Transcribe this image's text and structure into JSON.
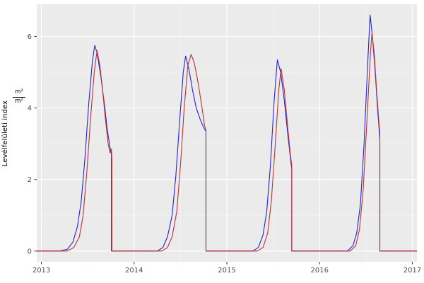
{
  "chart_data": {
    "type": "line",
    "title": "",
    "xlabel": "",
    "ylabel": "Levélfelületi index (m²/m²)",
    "ylabel_text": "Levélfelületi index",
    "ylabel_frac": {
      "num": "m²",
      "den": "m²"
    },
    "xlim": [
      2012.95,
      2017.05
    ],
    "ylim": [
      -0.3,
      6.9
    ],
    "x_ticks": [
      2013,
      2014,
      2015,
      2016,
      2017
    ],
    "x_tick_labels": [
      "2013",
      "2014",
      "2015",
      "2016",
      "2017"
    ],
    "y_ticks": [
      0,
      2,
      4,
      6
    ],
    "y_tick_labels": [
      "0",
      "2",
      "4",
      "6"
    ],
    "x_minor": [
      2013.5,
      2014.5,
      2015.5,
      2016.5
    ],
    "y_minor": [
      1,
      3,
      5
    ],
    "grid": true,
    "legend": "none",
    "panel_bg": "#EBEBEB",
    "grid_major_color": "#FFFFFF",
    "grid_minor_color": "#FFFFFF",
    "tick_color": "#333333",
    "tick_label_color": "#4D4D4D",
    "series": [
      {
        "name": "series-blue",
        "color": "#2222DD",
        "points": [
          [
            2012.95,
            0
          ],
          [
            2013.2,
            0
          ],
          [
            2013.28,
            0.05
          ],
          [
            2013.34,
            0.25
          ],
          [
            2013.39,
            0.7
          ],
          [
            2013.43,
            1.4
          ],
          [
            2013.47,
            2.6
          ],
          [
            2013.51,
            4.1
          ],
          [
            2013.55,
            5.3
          ],
          [
            2013.575,
            5.75
          ],
          [
            2013.6,
            5.55
          ],
          [
            2013.64,
            4.9
          ],
          [
            2013.68,
            4.1
          ],
          [
            2013.71,
            3.4
          ],
          [
            2013.74,
            2.9
          ],
          [
            2013.755,
            2.7
          ],
          [
            2013.755,
            0
          ],
          [
            2014.0,
            0
          ],
          [
            2014.25,
            0
          ],
          [
            2014.31,
            0.1
          ],
          [
            2014.36,
            0.4
          ],
          [
            2014.41,
            1.0
          ],
          [
            2014.45,
            2.1
          ],
          [
            2014.49,
            3.6
          ],
          [
            2014.53,
            5.0
          ],
          [
            2014.555,
            5.45
          ],
          [
            2014.59,
            5.1
          ],
          [
            2014.63,
            4.5
          ],
          [
            2014.67,
            4.0
          ],
          [
            2014.71,
            3.7
          ],
          [
            2014.75,
            3.45
          ],
          [
            2014.775,
            3.35
          ],
          [
            2014.775,
            0
          ],
          [
            2015.0,
            0
          ],
          [
            2015.28,
            0
          ],
          [
            2015.34,
            0.1
          ],
          [
            2015.39,
            0.45
          ],
          [
            2015.43,
            1.1
          ],
          [
            2015.47,
            2.4
          ],
          [
            2015.51,
            4.2
          ],
          [
            2015.545,
            5.35
          ],
          [
            2015.58,
            5.0
          ],
          [
            2015.62,
            4.2
          ],
          [
            2015.66,
            3.2
          ],
          [
            2015.69,
            2.5
          ],
          [
            2015.7,
            2.3
          ],
          [
            2015.7,
            0
          ],
          [
            2016.0,
            0
          ],
          [
            2016.3,
            0
          ],
          [
            2016.36,
            0.15
          ],
          [
            2016.4,
            0.5
          ],
          [
            2016.44,
            1.3
          ],
          [
            2016.48,
            3.0
          ],
          [
            2016.52,
            5.3
          ],
          [
            2016.545,
            6.6
          ],
          [
            2016.57,
            6.0
          ],
          [
            2016.6,
            5.0
          ],
          [
            2016.625,
            4.0
          ],
          [
            2016.645,
            3.3
          ],
          [
            2016.65,
            3.1
          ],
          [
            2016.65,
            0
          ],
          [
            2017.05,
            0
          ]
        ]
      },
      {
        "name": "series-red",
        "color": "#C03030",
        "points": [
          [
            2012.95,
            0
          ],
          [
            2013.28,
            0
          ],
          [
            2013.35,
            0.1
          ],
          [
            2013.41,
            0.4
          ],
          [
            2013.45,
            1.0
          ],
          [
            2013.49,
            2.2
          ],
          [
            2013.53,
            3.7
          ],
          [
            2013.57,
            5.0
          ],
          [
            2013.6,
            5.6
          ],
          [
            2013.63,
            5.2
          ],
          [
            2013.66,
            4.5
          ],
          [
            2013.69,
            3.7
          ],
          [
            2013.72,
            3.0
          ],
          [
            2013.74,
            2.75
          ],
          [
            2013.755,
            2.85
          ],
          [
            2013.76,
            2.6
          ],
          [
            2013.76,
            0
          ],
          [
            2014.0,
            0
          ],
          [
            2014.3,
            0
          ],
          [
            2014.36,
            0.1
          ],
          [
            2014.41,
            0.4
          ],
          [
            2014.46,
            1.1
          ],
          [
            2014.5,
            2.4
          ],
          [
            2014.54,
            4.0
          ],
          [
            2014.58,
            5.2
          ],
          [
            2014.615,
            5.5
          ],
          [
            2014.65,
            5.25
          ],
          [
            2014.69,
            4.7
          ],
          [
            2014.73,
            4.05
          ],
          [
            2014.76,
            3.5
          ],
          [
            2014.775,
            3.4
          ],
          [
            2014.775,
            0
          ],
          [
            2015.0,
            0
          ],
          [
            2015.33,
            0
          ],
          [
            2015.39,
            0.1
          ],
          [
            2015.44,
            0.5
          ],
          [
            2015.48,
            1.4
          ],
          [
            2015.52,
            2.9
          ],
          [
            2015.56,
            4.5
          ],
          [
            2015.585,
            5.1
          ],
          [
            2015.62,
            4.5
          ],
          [
            2015.655,
            3.5
          ],
          [
            2015.685,
            2.7
          ],
          [
            2015.7,
            2.4
          ],
          [
            2015.7,
            0
          ],
          [
            2016.0,
            0
          ],
          [
            2016.33,
            0
          ],
          [
            2016.39,
            0.15
          ],
          [
            2016.43,
            0.6
          ],
          [
            2016.47,
            1.7
          ],
          [
            2016.51,
            3.6
          ],
          [
            2016.55,
            5.6
          ],
          [
            2016.565,
            6.1
          ],
          [
            2016.59,
            5.5
          ],
          [
            2016.615,
            4.5
          ],
          [
            2016.64,
            3.6
          ],
          [
            2016.65,
            3.3
          ],
          [
            2016.65,
            0
          ],
          [
            2017.05,
            0
          ]
        ]
      }
    ]
  }
}
